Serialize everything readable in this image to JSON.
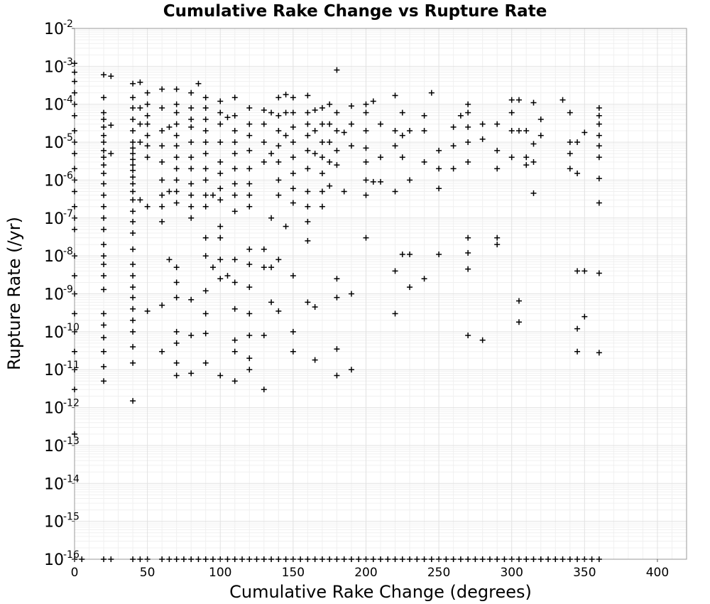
{
  "chart_data": {
    "type": "scatter",
    "title": "Cumulative Rake Change vs Rupture Rate",
    "xlabel": "Cumulative Rake Change (degrees)",
    "ylabel": "Rupture Rate (/yr)",
    "xlim": [
      0,
      420
    ],
    "ylim": [
      1e-16,
      0.01
    ],
    "yscale": "log",
    "grid": true,
    "marker": "plus",
    "marker_color": "#000000",
    "x_ticks": [
      "0",
      "50",
      "100",
      "150",
      "200",
      "250",
      "300",
      "350",
      "400"
    ],
    "x_tick_values": [
      0,
      50,
      100,
      150,
      200,
      250,
      300,
      350,
      400
    ],
    "y_ticks": [
      {
        "base": "10",
        "exp": "-2"
      },
      {
        "base": "10",
        "exp": "-3"
      },
      {
        "base": "10",
        "exp": "-4"
      },
      {
        "base": "10",
        "exp": "-5"
      },
      {
        "base": "10",
        "exp": "-6"
      },
      {
        "base": "10",
        "exp": "-7"
      },
      {
        "base": "10",
        "exp": "-8"
      },
      {
        "base": "10",
        "exp": "-9"
      },
      {
        "base": "10",
        "exp": "-10"
      },
      {
        "base": "10",
        "exp": "-11"
      },
      {
        "base": "10",
        "exp": "-12"
      },
      {
        "base": "10",
        "exp": "-13"
      },
      {
        "base": "10",
        "exp": "-14"
      },
      {
        "base": "10",
        "exp": "-15"
      },
      {
        "base": "10",
        "exp": "-16"
      }
    ],
    "y_tick_values": [
      0.01,
      0.001,
      0.0001,
      1e-05,
      1e-06,
      1e-07,
      1e-08,
      1e-09,
      1e-10,
      1e-11,
      1e-12,
      1e-13,
      1e-14,
      1e-15,
      1e-16
    ],
    "points": [
      [
        0,
        0.0012
      ],
      [
        0,
        0.0007
      ],
      [
        0,
        0.0004
      ],
      [
        0,
        0.0002
      ],
      [
        0,
        0.0001
      ],
      [
        0,
        5e-05
      ],
      [
        0,
        2e-05
      ],
      [
        0,
        1e-05
      ],
      [
        0,
        5e-06
      ],
      [
        0,
        2e-06
      ],
      [
        0,
        1e-06
      ],
      [
        0,
        5e-07
      ],
      [
        0,
        2e-07
      ],
      [
        0,
        1e-07
      ],
      [
        0,
        5e-08
      ],
      [
        0,
        1e-08
      ],
      [
        0,
        3e-09
      ],
      [
        0,
        1e-09
      ],
      [
        0,
        3e-10
      ],
      [
        0,
        1e-10
      ],
      [
        0,
        3e-11
      ],
      [
        0,
        1e-11
      ],
      [
        0,
        3e-12
      ],
      [
        0,
        2e-13
      ],
      [
        20,
        0.0006
      ],
      [
        20,
        0.00015
      ],
      [
        20,
        6e-05
      ],
      [
        20,
        4e-05
      ],
      [
        20,
        2.5e-05
      ],
      [
        20,
        1.5e-05
      ],
      [
        20,
        1e-05
      ],
      [
        20,
        6e-06
      ],
      [
        20,
        4e-06
      ],
      [
        20,
        2.5e-06
      ],
      [
        20,
        1.5e-06
      ],
      [
        20,
        8e-07
      ],
      [
        20,
        4e-07
      ],
      [
        20,
        2e-07
      ],
      [
        20,
        1e-07
      ],
      [
        20,
        5e-08
      ],
      [
        20,
        2e-08
      ],
      [
        20,
        1e-08
      ],
      [
        20,
        6e-09
      ],
      [
        20,
        3e-09
      ],
      [
        20,
        1.3e-09
      ],
      [
        20,
        3e-10
      ],
      [
        20,
        1.5e-10
      ],
      [
        20,
        7e-11
      ],
      [
        20,
        3e-11
      ],
      [
        20,
        1.2e-11
      ],
      [
        20,
        5e-12
      ],
      [
        25,
        0.00055
      ],
      [
        25,
        2.8e-05
      ],
      [
        25,
        5e-06
      ],
      [
        40,
        0.00035
      ],
      [
        40,
        0.00015
      ],
      [
        40,
        8e-05
      ],
      [
        40,
        4e-05
      ],
      [
        40,
        2e-05
      ],
      [
        40,
        1e-05
      ],
      [
        40,
        7e-06
      ],
      [
        40,
        5e-06
      ],
      [
        40,
        3.5e-06
      ],
      [
        40,
        2.5e-06
      ],
      [
        40,
        1.8e-06
      ],
      [
        40,
        1.2e-06
      ],
      [
        40,
        8e-07
      ],
      [
        40,
        5e-07
      ],
      [
        40,
        3e-07
      ],
      [
        40,
        1.5e-07
      ],
      [
        40,
        8e-08
      ],
      [
        40,
        4e-08
      ],
      [
        40,
        1.5e-08
      ],
      [
        40,
        6e-09
      ],
      [
        40,
        3e-09
      ],
      [
        40,
        1.5e-09
      ],
      [
        40,
        8e-10
      ],
      [
        40,
        4e-10
      ],
      [
        40,
        2e-10
      ],
      [
        40,
        1e-10
      ],
      [
        40,
        4e-11
      ],
      [
        40,
        1.5e-11
      ],
      [
        40,
        1.5e-12
      ],
      [
        45,
        0.00038
      ],
      [
        45,
        8e-05
      ],
      [
        45,
        3e-05
      ],
      [
        45,
        1e-05
      ],
      [
        45,
        3e-07
      ],
      [
        50,
        0.0002
      ],
      [
        50,
        0.0001
      ],
      [
        50,
        5e-05
      ],
      [
        50,
        3e-05
      ],
      [
        50,
        1.5e-05
      ],
      [
        50,
        8e-06
      ],
      [
        50,
        4e-06
      ],
      [
        50,
        2e-07
      ],
      [
        50,
        3.5e-10
      ],
      [
        60,
        0.00025
      ],
      [
        60,
        8e-05
      ],
      [
        60,
        2e-05
      ],
      [
        60,
        8e-06
      ],
      [
        60,
        3e-06
      ],
      [
        60,
        1e-06
      ],
      [
        60,
        4e-07
      ],
      [
        60,
        2e-07
      ],
      [
        60,
        8e-08
      ],
      [
        60,
        5e-10
      ],
      [
        60,
        3e-11
      ],
      [
        65,
        2.5e-05
      ],
      [
        65,
        5e-07
      ],
      [
        65,
        8e-09
      ],
      [
        70,
        0.00025
      ],
      [
        70,
        0.0001
      ],
      [
        70,
        6e-05
      ],
      [
        70,
        3e-05
      ],
      [
        70,
        1.5e-05
      ],
      [
        70,
        8e-06
      ],
      [
        70,
        4e-06
      ],
      [
        70,
        2e-06
      ],
      [
        70,
        1e-06
      ],
      [
        70,
        5e-07
      ],
      [
        70,
        2.5e-07
      ],
      [
        70,
        5e-09
      ],
      [
        70,
        2e-09
      ],
      [
        70,
        8e-10
      ],
      [
        70,
        1e-10
      ],
      [
        70,
        5e-11
      ],
      [
        70,
        1.5e-11
      ],
      [
        70,
        7e-12
      ],
      [
        80,
        0.0002
      ],
      [
        80,
        8e-05
      ],
      [
        80,
        4e-05
      ],
      [
        80,
        2.5e-05
      ],
      [
        80,
        1e-05
      ],
      [
        80,
        4e-06
      ],
      [
        80,
        2e-06
      ],
      [
        80,
        8e-07
      ],
      [
        80,
        4e-07
      ],
      [
        80,
        2e-07
      ],
      [
        80,
        1e-07
      ],
      [
        80,
        7e-10
      ],
      [
        80,
        8e-11
      ],
      [
        80,
        8e-12
      ],
      [
        85,
        0.00035
      ],
      [
        90,
        0.00015
      ],
      [
        90,
        8e-05
      ],
      [
        90,
        4e-05
      ],
      [
        90,
        2e-05
      ],
      [
        90,
        1e-05
      ],
      [
        90,
        5e-06
      ],
      [
        90,
        2e-06
      ],
      [
        90,
        1e-06
      ],
      [
        90,
        4e-07
      ],
      [
        90,
        2e-07
      ],
      [
        90,
        3e-08
      ],
      [
        90,
        1e-08
      ],
      [
        90,
        1.2e-09
      ],
      [
        90,
        3e-10
      ],
      [
        90,
        9e-11
      ],
      [
        90,
        1.5e-11
      ],
      [
        95,
        5e-09
      ],
      [
        95,
        4e-07
      ],
      [
        100,
        0.00012
      ],
      [
        100,
        6e-05
      ],
      [
        100,
        3e-05
      ],
      [
        100,
        1e-05
      ],
      [
        100,
        3e-06
      ],
      [
        100,
        1.5e-06
      ],
      [
        100,
        6e-07
      ],
      [
        100,
        3e-07
      ],
      [
        100,
        6e-08
      ],
      [
        100,
        3e-08
      ],
      [
        100,
        8e-09
      ],
      [
        100,
        2.5e-09
      ],
      [
        100,
        7e-12
      ],
      [
        105,
        4.5e-05
      ],
      [
        105,
        3e-09
      ],
      [
        110,
        0.00015
      ],
      [
        110,
        5e-05
      ],
      [
        110,
        2e-05
      ],
      [
        110,
        1e-05
      ],
      [
        110,
        5e-06
      ],
      [
        110,
        2e-06
      ],
      [
        110,
        8e-07
      ],
      [
        110,
        4e-07
      ],
      [
        110,
        1.5e-07
      ],
      [
        110,
        8e-09
      ],
      [
        110,
        2e-09
      ],
      [
        110,
        4e-10
      ],
      [
        110,
        6e-11
      ],
      [
        110,
        3e-11
      ],
      [
        110,
        5e-12
      ],
      [
        120,
        8e-05
      ],
      [
        120,
        3e-05
      ],
      [
        120,
        1.5e-05
      ],
      [
        120,
        6e-06
      ],
      [
        120,
        2e-06
      ],
      [
        120,
        8e-07
      ],
      [
        120,
        4e-07
      ],
      [
        120,
        2e-07
      ],
      [
        120,
        1.5e-08
      ],
      [
        120,
        6e-09
      ],
      [
        120,
        1.5e-09
      ],
      [
        120,
        3e-10
      ],
      [
        120,
        8e-11
      ],
      [
        120,
        2e-11
      ],
      [
        120,
        1e-11
      ],
      [
        130,
        7e-05
      ],
      [
        130,
        3e-05
      ],
      [
        130,
        1e-05
      ],
      [
        130,
        3e-06
      ],
      [
        130,
        1.5e-08
      ],
      [
        130,
        5e-09
      ],
      [
        130,
        8e-11
      ],
      [
        130,
        3e-12
      ],
      [
        135,
        6e-05
      ],
      [
        135,
        5e-06
      ],
      [
        135,
        1e-07
      ],
      [
        135,
        5e-09
      ],
      [
        135,
        6e-10
      ],
      [
        140,
        0.00015
      ],
      [
        140,
        5e-05
      ],
      [
        140,
        2e-05
      ],
      [
        140,
        8e-06
      ],
      [
        140,
        3e-06
      ],
      [
        140,
        1e-06
      ],
      [
        140,
        4e-07
      ],
      [
        140,
        8e-09
      ],
      [
        140,
        3.5e-10
      ],
      [
        145,
        0.00018
      ],
      [
        145,
        6e-05
      ],
      [
        145,
        1.5e-05
      ],
      [
        145,
        6e-08
      ],
      [
        150,
        0.00015
      ],
      [
        150,
        6e-05
      ],
      [
        150,
        2.5e-05
      ],
      [
        150,
        1e-05
      ],
      [
        150,
        4e-06
      ],
      [
        150,
        1.5e-06
      ],
      [
        150,
        6e-07
      ],
      [
        150,
        2.5e-07
      ],
      [
        150,
        3e-09
      ],
      [
        150,
        1e-10
      ],
      [
        150,
        3e-11
      ],
      [
        160,
        0.00017
      ],
      [
        160,
        6e-05
      ],
      [
        160,
        3e-05
      ],
      [
        160,
        1.5e-05
      ],
      [
        160,
        6e-06
      ],
      [
        160,
        2e-06
      ],
      [
        160,
        5e-07
      ],
      [
        160,
        2e-07
      ],
      [
        160,
        8e-08
      ],
      [
        160,
        2.5e-08
      ],
      [
        160,
        6e-10
      ],
      [
        165,
        7e-05
      ],
      [
        165,
        2e-05
      ],
      [
        165,
        5e-06
      ],
      [
        165,
        4.5e-10
      ],
      [
        165,
        1.8e-11
      ],
      [
        170,
        8e-05
      ],
      [
        170,
        3e-05
      ],
      [
        170,
        1e-05
      ],
      [
        170,
        4e-06
      ],
      [
        170,
        1.5e-06
      ],
      [
        170,
        5e-07
      ],
      [
        170,
        2e-07
      ],
      [
        175,
        0.0001
      ],
      [
        175,
        3e-05
      ],
      [
        175,
        1e-05
      ],
      [
        175,
        3e-06
      ],
      [
        175,
        7e-07
      ],
      [
        180,
        0.0008
      ],
      [
        180,
        6e-05
      ],
      [
        180,
        2e-05
      ],
      [
        180,
        6e-06
      ],
      [
        180,
        2.5e-06
      ],
      [
        180,
        2.5e-09
      ],
      [
        180,
        8e-10
      ],
      [
        180,
        3.5e-11
      ],
      [
        180,
        7e-12
      ],
      [
        185,
        1.8e-05
      ],
      [
        185,
        5e-07
      ],
      [
        190,
        9e-05
      ],
      [
        190,
        3e-05
      ],
      [
        190,
        8e-06
      ],
      [
        190,
        1e-09
      ],
      [
        190,
        1e-11
      ],
      [
        200,
        0.0001
      ],
      [
        200,
        6e-05
      ],
      [
        200,
        2e-05
      ],
      [
        200,
        7e-06
      ],
      [
        200,
        3e-06
      ],
      [
        200,
        1e-06
      ],
      [
        200,
        4e-07
      ],
      [
        200,
        3e-08
      ],
      [
        205,
        0.00012
      ],
      [
        205,
        9e-07
      ],
      [
        210,
        3e-05
      ],
      [
        210,
        4e-06
      ],
      [
        210,
        9e-07
      ],
      [
        220,
        0.00017
      ],
      [
        220,
        2e-05
      ],
      [
        220,
        8e-06
      ],
      [
        220,
        5e-07
      ],
      [
        220,
        4e-09
      ],
      [
        220,
        3e-10
      ],
      [
        225,
        6e-05
      ],
      [
        225,
        1.5e-05
      ],
      [
        225,
        4e-06
      ],
      [
        225,
        1.1e-08
      ],
      [
        230,
        2e-05
      ],
      [
        230,
        1e-06
      ],
      [
        230,
        1.1e-08
      ],
      [
        230,
        1.5e-09
      ],
      [
        240,
        5e-05
      ],
      [
        240,
        2e-05
      ],
      [
        240,
        3e-06
      ],
      [
        240,
        2.5e-09
      ],
      [
        245,
        0.0002
      ],
      [
        250,
        6e-06
      ],
      [
        250,
        2e-06
      ],
      [
        250,
        6e-07
      ],
      [
        250,
        1.1e-08
      ],
      [
        260,
        2.5e-05
      ],
      [
        260,
        8e-06
      ],
      [
        260,
        2e-06
      ],
      [
        265,
        5e-05
      ],
      [
        270,
        0.0001
      ],
      [
        270,
        6e-05
      ],
      [
        270,
        2.5e-05
      ],
      [
        270,
        1e-05
      ],
      [
        270,
        3e-06
      ],
      [
        270,
        3e-08
      ],
      [
        270,
        1.2e-08
      ],
      [
        270,
        4.5e-09
      ],
      [
        270,
        8e-11
      ],
      [
        280,
        3e-05
      ],
      [
        280,
        1.2e-05
      ],
      [
        280,
        6e-11
      ],
      [
        290,
        3e-05
      ],
      [
        290,
        6e-06
      ],
      [
        290,
        2e-06
      ],
      [
        290,
        3e-08
      ],
      [
        290,
        2e-08
      ],
      [
        300,
        0.00013
      ],
      [
        300,
        6e-05
      ],
      [
        300,
        2e-05
      ],
      [
        300,
        4e-06
      ],
      [
        305,
        0.00013
      ],
      [
        305,
        2e-05
      ],
      [
        305,
        6.5e-10
      ],
      [
        305,
        1.8e-10
      ],
      [
        310,
        2e-05
      ],
      [
        310,
        4e-06
      ],
      [
        310,
        2.5e-06
      ],
      [
        315,
        0.00011
      ],
      [
        315,
        9e-06
      ],
      [
        315,
        3e-06
      ],
      [
        315,
        4.5e-07
      ],
      [
        320,
        4e-05
      ],
      [
        320,
        1.5e-05
      ],
      [
        335,
        0.00013
      ],
      [
        340,
        6e-05
      ],
      [
        340,
        1e-05
      ],
      [
        340,
        5e-06
      ],
      [
        340,
        2e-06
      ],
      [
        345,
        1e-05
      ],
      [
        345,
        1.5e-06
      ],
      [
        345,
        4e-09
      ],
      [
        345,
        1.2e-10
      ],
      [
        345,
        3e-11
      ],
      [
        350,
        1.8e-05
      ],
      [
        350,
        4e-09
      ],
      [
        350,
        2.5e-10
      ],
      [
        360,
        8e-05
      ],
      [
        360,
        5e-05
      ],
      [
        360,
        3e-05
      ],
      [
        360,
        1.5e-05
      ],
      [
        360,
        8e-06
      ],
      [
        360,
        4e-06
      ],
      [
        360,
        1.1e-06
      ],
      [
        360,
        2.5e-07
      ],
      [
        360,
        3.5e-09
      ],
      [
        360,
        2.8e-11
      ]
    ],
    "floor_x": [
      0,
      5,
      20,
      25,
      40,
      45,
      50,
      60,
      65,
      70,
      75,
      80,
      85,
      90,
      95,
      100,
      105,
      110,
      115,
      120,
      125,
      130,
      135,
      140,
      145,
      150,
      155,
      160,
      165,
      170,
      175,
      180,
      185,
      190,
      195,
      200,
      205,
      210,
      215,
      220,
      225,
      230,
      235,
      240,
      245,
      250,
      255,
      260,
      265,
      270,
      275,
      280,
      285,
      290,
      295,
      300,
      305,
      310,
      315,
      320,
      325,
      330,
      335,
      340,
      345,
      350,
      355,
      360
    ],
    "floor_y": 1e-16
  }
}
